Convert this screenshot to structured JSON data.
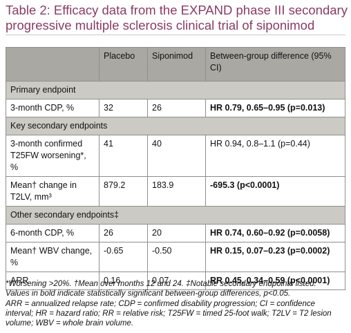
{
  "title_lines": [
    "Table 2: Efficacy data from the EXPAND phase III secondary",
    "progressive multiple sclerosis clinical trial of siponimod"
  ],
  "table": {
    "header": [
      "Placebo",
      "Siponimod",
      "Between-group difference (95% CI)"
    ],
    "rows": [
      {
        "section": "Primary endpoint"
      },
      {
        "cells": [
          "3-month CDP, %",
          "32",
          "26",
          "HR 0.79, 0.65–0.95 (p=0.013)"
        ],
        "bold": true
      },
      {
        "section": "Key secondary endpoints"
      },
      {
        "cells": [
          "3-month confirmed T25FW worsening*, %",
          "41",
          "40",
          "HR 0.94, 0.8–1.1 (p=0.44)"
        ],
        "bold": false
      },
      {
        "cells": [
          "Mean† change in T2LV, mm³",
          "879.2",
          "183.9",
          "-695.3 (p<0.0001)"
        ],
        "bold": true
      },
      {
        "section": "Other secondary endpoints‡"
      },
      {
        "cells": [
          "6-month CDP, %",
          "26",
          "20",
          "HR 0.74, 0.60–0.92 (p=0.0058)"
        ],
        "bold": true
      },
      {
        "cells": [
          "Mean† WBV change, %",
          "-0.65",
          "-0.50",
          "HR 0.15, 0.07–0.23 (p=0.0002)"
        ],
        "bold": true
      },
      {
        "cells": [
          "ARR",
          "0.16",
          "0.07",
          "RR 0.45, 0.34–0.59 (p<0.0001)"
        ],
        "bold": true
      }
    ]
  },
  "footnote_lines": [
    "*Worsening >20%. †Mean over months 12 and 24. ‡Notable secondary endpoints listed.",
    "Values in bold indicate statistically significant between-group differences, p<0.05.",
    "ARR = annualized relapse rate; CDP = confirmed disability progression; CI = confidence",
    "interval; HR = hazard ratio; RR = relative risk; T25FW = timed 25-foot walk; T2LV = T2 lesion",
    "volume; WBV = whole brain volume."
  ]
}
